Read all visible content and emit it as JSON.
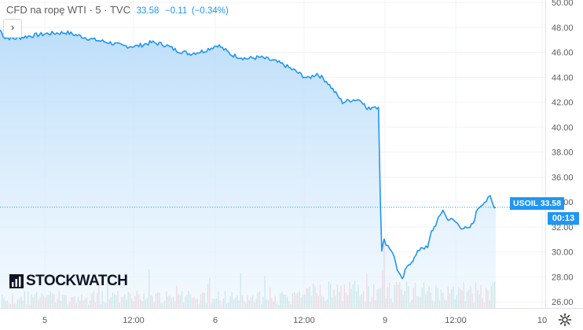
{
  "header": {
    "instrument": "CFD na ropę WTI · 5 · TVC",
    "price": "33.58",
    "change": "−0.11",
    "change_pct": "(−0.34%)"
  },
  "logo_text": "STOCKWATCH",
  "price_label": {
    "symbol": "USOIL",
    "price": "33.58",
    "countdown": "00:13"
  },
  "colors": {
    "line": "#2196f3",
    "area_top": "#b9dcf9",
    "up_volume": "#8fd1c4",
    "down_volume": "#f3a5a3",
    "axis_text": "#5c5c5c"
  },
  "chart_data": {
    "type": "area",
    "title": "",
    "x_tick_labels": [
      "5",
      "12:00",
      "6",
      "12:00",
      "9",
      "12:00",
      "10"
    ],
    "y_tick_labels": [
      "26.00",
      "28.00",
      "30.00",
      "32.00",
      "34.00",
      "36.00",
      "38.00",
      "40.00",
      "42.00",
      "44.00",
      "46.00",
      "48.00",
      "50.00"
    ],
    "ylim": [
      25.5,
      50.2
    ],
    "grid": true,
    "series": [
      {
        "values": [
          [
            0,
            47.8
          ],
          [
            0.05,
            47.2
          ],
          [
            0.15,
            47.1
          ],
          [
            0.3,
            47.3
          ],
          [
            0.5,
            47.5
          ],
          [
            0.7,
            47.6
          ],
          [
            0.85,
            47.3
          ],
          [
            1.0,
            47.0
          ],
          [
            1.15,
            46.8
          ],
          [
            1.3,
            46.5
          ],
          [
            1.45,
            46.5
          ],
          [
            1.6,
            46.8
          ],
          [
            1.75,
            46.6
          ],
          [
            1.85,
            46.2
          ],
          [
            2.0,
            45.9
          ],
          [
            2.15,
            46.1
          ],
          [
            2.3,
            46.6
          ],
          [
            2.45,
            45.8
          ],
          [
            2.6,
            45.5
          ],
          [
            2.75,
            45.6
          ],
          [
            2.9,
            45.3
          ],
          [
            3.0,
            45.0
          ],
          [
            3.12,
            44.5
          ],
          [
            3.25,
            43.9
          ],
          [
            3.35,
            44.3
          ],
          [
            3.45,
            43.7
          ],
          [
            3.55,
            42.7
          ],
          [
            3.62,
            42.0
          ],
          [
            3.72,
            42.2
          ],
          [
            3.82,
            42.2
          ],
          [
            3.88,
            41.4
          ],
          [
            3.95,
            41.7
          ],
          [
            4.0,
            41.6
          ],
          [
            4.02,
            34.0
          ],
          [
            4.035,
            30.2
          ],
          [
            4.06,
            30.9
          ],
          [
            4.1,
            30.5
          ],
          [
            4.15,
            30.0
          ],
          [
            4.2,
            28.6
          ],
          [
            4.25,
            27.7
          ],
          [
            4.28,
            28.4
          ],
          [
            4.32,
            29.0
          ],
          [
            4.38,
            29.5
          ],
          [
            4.45,
            30.4
          ],
          [
            4.52,
            30.3
          ],
          [
            4.56,
            31.6
          ],
          [
            4.62,
            32.4
          ],
          [
            4.68,
            33.4
          ],
          [
            4.72,
            32.7
          ],
          [
            4.8,
            32.5
          ],
          [
            4.87,
            32.0
          ],
          [
            4.95,
            31.8
          ],
          [
            5.0,
            32.3
          ],
          [
            5.05,
            33.5
          ],
          [
            5.1,
            33.9
          ],
          [
            5.14,
            34.1
          ],
          [
            5.18,
            34.4
          ],
          [
            5.21,
            33.8
          ],
          [
            5.24,
            33.58
          ]
        ]
      }
    ]
  }
}
